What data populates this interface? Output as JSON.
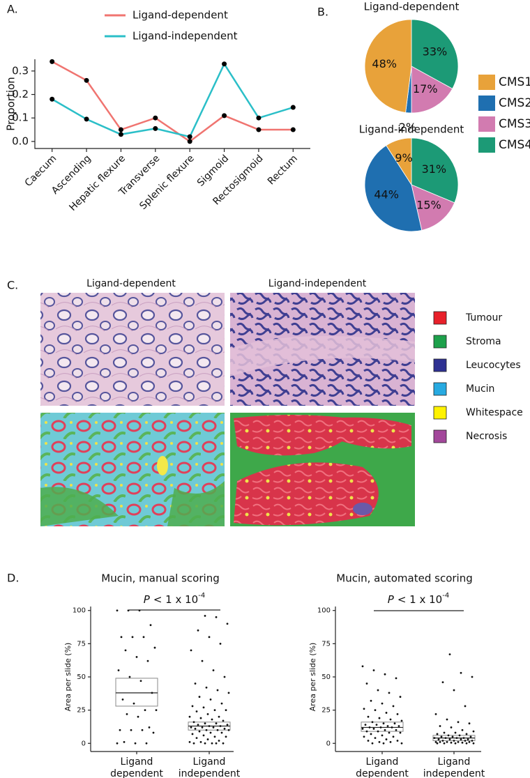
{
  "chart_data": [
    {
      "type": "line",
      "panel": "A.",
      "y_label": "Proportion",
      "categories": [
        "Caecum",
        "Ascending",
        "Hepatic flexure",
        "Transverse",
        "Splenic flexure",
        "Sigmoid",
        "Rectosigmoid",
        "Rectum"
      ],
      "series": [
        {
          "name": "Ligand-dependent",
          "color": "#f07470",
          "values": [
            0.34,
            0.26,
            0.05,
            0.1,
            0.0,
            0.11,
            0.05,
            0.05
          ]
        },
        {
          "name": "Ligand-independent",
          "color": "#2bbfc8",
          "values": [
            0.18,
            0.095,
            0.03,
            0.055,
            0.02,
            0.33,
            0.1,
            0.145
          ]
        }
      ],
      "marker_color": "#000000",
      "ylim": [
        -0.03,
        0.35
      ],
      "yticks": [
        {
          "value": 0,
          "label": "0.0"
        },
        {
          "value": 0.1,
          "label": "0.1"
        },
        {
          "value": 0.2,
          "label": "0.2"
        },
        {
          "value": 0.3,
          "label": "0.3"
        }
      ]
    },
    {
      "type": "pie",
      "panel": "B.",
      "title": "Ligand-dependent",
      "legend": "right",
      "categories": [
        "CMS1",
        "CMS2",
        "CMS3",
        "CMS4"
      ],
      "colors": [
        "#e8a23a",
        "#1f6fb0",
        "#d27bb0",
        "#1c9a76"
      ],
      "values": [
        48,
        2,
        17,
        33
      ],
      "value_labels": [
        "48%",
        "2%",
        "17%",
        "33%"
      ]
    },
    {
      "type": "pie",
      "title": "Ligand-independent",
      "categories": [
        "CMS1",
        "CMS2",
        "CMS3",
        "CMS4"
      ],
      "colors": [
        "#e8a23a",
        "#1f6fb0",
        "#d27bb0",
        "#1c9a76"
      ],
      "values": [
        9,
        44,
        15,
        31
      ],
      "value_labels": [
        "9%",
        "44%",
        "15%",
        "31%"
      ]
    },
    {
      "type": "strip",
      "panel": "D.",
      "title": "Mucin, manual scoring",
      "y_label": "Area per slide (%)",
      "annotation": {
        "symbol": "P",
        "text": "< 1 x 10",
        "exponent": "-4"
      },
      "categories": [
        [
          "Ligand",
          "dependent"
        ],
        [
          "Ligand",
          "independent"
        ]
      ],
      "groups": [
        {
          "values": [
            100,
            100,
            100,
            89,
            80,
            80,
            80,
            72,
            70,
            65,
            62,
            55,
            50,
            47,
            38,
            33,
            30,
            25,
            25,
            22,
            20,
            12,
            10,
            10,
            10,
            8,
            1,
            0,
            0,
            0
          ],
          "box": {
            "q1": 28,
            "median": 38,
            "q3": 49
          }
        },
        {
          "values": [
            96,
            95,
            90,
            85,
            80,
            75,
            70,
            62,
            55,
            50,
            45,
            42,
            40,
            38,
            35,
            33,
            30,
            28,
            27,
            25,
            25,
            24,
            22,
            20,
            20,
            19,
            18,
            17,
            16,
            15,
            15,
            14,
            14,
            13,
            13,
            12,
            12,
            12,
            11,
            11,
            10,
            10,
            10,
            9,
            8,
            8,
            7,
            6,
            5,
            5,
            4,
            3,
            2,
            1,
            1,
            0,
            0,
            0,
            0,
            0
          ],
          "box": {
            "q1": 10,
            "median": 13,
            "q3": 16
          }
        }
      ],
      "ylim": [
        -3,
        103
      ],
      "yticks": [
        0,
        25,
        50,
        75,
        100
      ]
    },
    {
      "type": "strip",
      "title": "Mucin, automated scoring",
      "y_label": "Area per slide (%)",
      "annotation": {
        "symbol": "P",
        "text": "< 1 x 10",
        "exponent": "-4"
      },
      "categories": [
        [
          "Ligand",
          "dependent"
        ],
        [
          "Ligand",
          "independent"
        ]
      ],
      "groups": [
        {
          "values": [
            58,
            55,
            52,
            49,
            45,
            40,
            38,
            35,
            32,
            30,
            28,
            26,
            25,
            23,
            22,
            20,
            19,
            18,
            17,
            16,
            15,
            15,
            14,
            14,
            13,
            13,
            12,
            12,
            12,
            11,
            11,
            10,
            10,
            9,
            9,
            8,
            8,
            7,
            6,
            5,
            5,
            4,
            3,
            2,
            2,
            1,
            1,
            0,
            0,
            0
          ],
          "box": {
            "q1": 9,
            "median": 12,
            "q3": 16
          }
        },
        {
          "values": [
            67,
            53,
            50,
            46,
            40,
            28,
            22,
            18,
            16,
            15,
            13,
            12,
            10,
            9,
            8,
            8,
            7,
            7,
            6,
            6,
            5,
            5,
            5,
            4,
            4,
            4,
            4,
            3,
            3,
            3,
            3,
            2,
            2,
            2,
            2,
            1,
            1,
            1,
            1,
            1,
            0.5,
            0.5,
            0,
            0,
            0,
            0,
            0
          ],
          "box": {
            "q1": 2,
            "median": 4,
            "q3": 6
          }
        }
      ],
      "ylim": [
        -3,
        103
      ],
      "yticks": [
        0,
        25,
        50,
        75,
        100
      ]
    }
  ],
  "panel_c": {
    "panel": "C.",
    "columns": [
      "Ligand-dependent",
      "Ligand-independent"
    ],
    "legend": [
      {
        "label": "Tumour",
        "color": "#e8202a"
      },
      {
        "label": "Stroma",
        "color": "#1da14b"
      },
      {
        "label": "Leucocytes",
        "color": "#2e3192"
      },
      {
        "label": "Mucin",
        "color": "#27aae1"
      },
      {
        "label": "Whitespace",
        "color": "#fff200"
      },
      {
        "label": "Necrosis",
        "color": "#a3479b"
      }
    ]
  }
}
